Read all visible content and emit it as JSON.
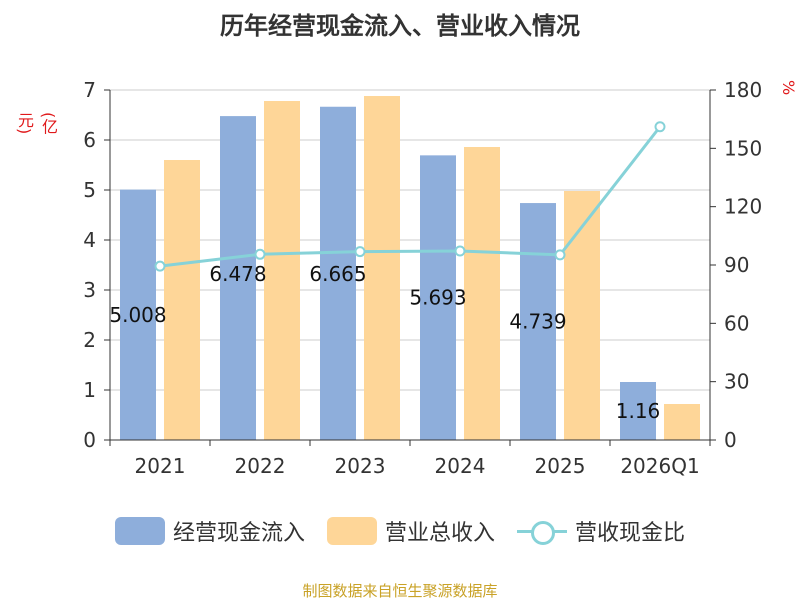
{
  "chart_data": {
    "type": "bar",
    "title": "历年经营现金流入、营业收入情况",
    "left_unit": "(亿元)",
    "right_unit": "%",
    "categories": [
      "2021",
      "2022",
      "2023",
      "2024",
      "2025",
      "2026Q1"
    ],
    "series": [
      {
        "name": "经营现金流入",
        "type": "bar",
        "axis": "left",
        "color": "#8eaedb",
        "values": [
          5.008,
          6.478,
          6.665,
          5.693,
          4.739,
          1.16
        ],
        "labels": [
          "5.008",
          "6.478",
          "6.665",
          "5.693",
          "4.739",
          "1.16"
        ]
      },
      {
        "name": "营业总收入",
        "type": "bar",
        "axis": "left",
        "color": "#fed698",
        "values": [
          5.6,
          6.78,
          6.88,
          5.86,
          4.98,
          0.72
        ]
      },
      {
        "name": "营收现金比",
        "type": "line",
        "axis": "right",
        "color": "#86d2d8",
        "values": [
          89.4,
          95.5,
          96.9,
          97.2,
          95.2,
          161.1
        ]
      }
    ],
    "y_left": {
      "min": 0,
      "max": 7,
      "ticks": [
        "0",
        "1",
        "2",
        "3",
        "4",
        "5",
        "6",
        "7"
      ]
    },
    "y_right": {
      "min": 0,
      "max": 180,
      "ticks": [
        "0",
        "30",
        "60",
        "90",
        "120",
        "150",
        "180"
      ]
    },
    "grid": true,
    "legend_position": "bottom"
  },
  "source": "制图数据来自恒生聚源数据库"
}
